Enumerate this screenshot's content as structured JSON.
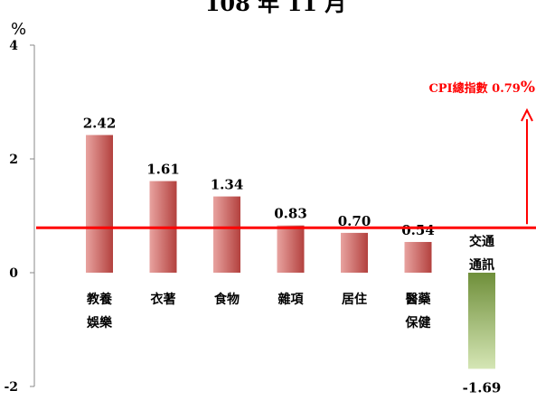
{
  "chart_data": {
    "type": "bar",
    "title": "108 年 11 月",
    "ylabel": "%",
    "ylim": [
      -2,
      4
    ],
    "yticks": [
      "4",
      "2",
      "0",
      "-2"
    ],
    "ytick_values": [
      4,
      2,
      0,
      -2
    ],
    "grid": false,
    "categories": [
      {
        "line1": "教養",
        "line2": "娛樂"
      },
      {
        "line1": "衣著",
        "line2": ""
      },
      {
        "line1": "食物",
        "line2": ""
      },
      {
        "line1": "雜項",
        "line2": ""
      },
      {
        "line1": "居住",
        "line2": ""
      },
      {
        "line1": "醫藥",
        "line2": "保健"
      },
      {
        "line1": "交通",
        "line2": "通訊"
      }
    ],
    "values": [
      2.42,
      1.61,
      1.34,
      0.83,
      0.7,
      0.54,
      -1.69
    ],
    "value_labels": [
      "2.42",
      "1.61",
      "1.34",
      "0.83",
      "0.70",
      "0.54",
      "-1.69"
    ],
    "reference_line": {
      "value": 0.79,
      "label_prefix": "CPI總指數 0.79",
      "label_suffix": "%",
      "color": "#ff0000"
    },
    "colors": {
      "positive": "#c0504d",
      "negative": "#9bbb59",
      "axis": "#888888"
    }
  }
}
